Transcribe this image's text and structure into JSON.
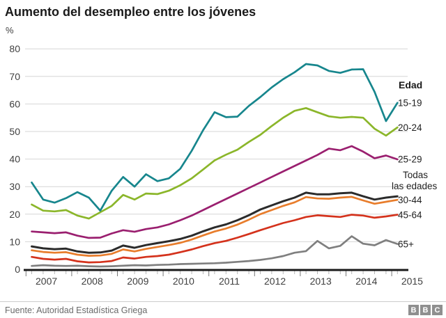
{
  "header": {
    "title": "Aumento del desempleo entre los jóvenes"
  },
  "footer": {
    "source": "Fuente: Autoridad Estadística Griega",
    "logo_letters": [
      "B",
      "B",
      "C"
    ]
  },
  "chart_data": {
    "type": "line",
    "title": "Aumento del desempleo entre los jóvenes",
    "ylabel": "%",
    "ylim": [
      0,
      80
    ],
    "ytick_step": 10,
    "grid": "horizontal",
    "x_unit": "quarterly",
    "x_start": "2007 Q1",
    "x_end": "2015 Q1",
    "x_years": [
      "2007",
      "2008",
      "2009",
      "2010",
      "2011",
      "2012",
      "2013",
      "2014",
      "2015"
    ],
    "legend_header": "Edad",
    "legend_position": "right-of-line-ends",
    "series": [
      {
        "name": "15-19",
        "label": "15-19",
        "color": "#17868D",
        "values": [
          31.5,
          25.3,
          24.2,
          25.8,
          28.0,
          26.0,
          21.3,
          28.5,
          33.5,
          30.0,
          34.5,
          32.0,
          33.0,
          36.5,
          43.0,
          50.5,
          57.0,
          55.2,
          55.4,
          59.3,
          62.5,
          66.0,
          69.0,
          71.5,
          74.5,
          74.0,
          72.0,
          71.3,
          72.5,
          72.6,
          64.4,
          53.8,
          60.4
        ]
      },
      {
        "name": "20-24",
        "label": "20-24",
        "color": "#8BB62A",
        "values": [
          23.5,
          21.3,
          21.0,
          21.5,
          19.5,
          18.4,
          20.7,
          23.0,
          27.0,
          25.3,
          27.5,
          27.3,
          28.5,
          30.5,
          33.0,
          36.2,
          39.5,
          41.6,
          43.4,
          46.2,
          48.8,
          52.0,
          55.0,
          57.5,
          58.5,
          57.0,
          55.5,
          55.0,
          55.3,
          55.0,
          51.0,
          48.5,
          51.5
        ]
      },
      {
        "name": "25-29",
        "label": "25-29",
        "color": "#9A1F6F",
        "values": [
          13.7,
          13.4,
          13.1,
          13.4,
          12.2,
          11.4,
          11.5,
          13.0,
          14.2,
          13.6,
          14.6,
          15.2,
          16.3,
          17.8,
          19.5,
          21.5,
          23.5,
          25.5,
          27.5,
          29.5,
          31.5,
          33.5,
          35.5,
          37.5,
          39.5,
          41.5,
          43.8,
          43.2,
          44.7,
          42.7,
          40.3,
          41.3,
          39.9
        ]
      },
      {
        "name": "Todas las edades",
        "label": null,
        "color": "#2B2B2B",
        "values": [
          8.3,
          7.6,
          7.3,
          7.5,
          6.5,
          6.0,
          6.1,
          6.8,
          8.6,
          7.8,
          8.8,
          9.5,
          10.2,
          11.0,
          12.2,
          13.8,
          15.2,
          16.3,
          17.8,
          19.6,
          21.7,
          23.2,
          24.7,
          26.0,
          27.8,
          27.2,
          27.2,
          27.6,
          27.8,
          26.5,
          25.3,
          26.0,
          26.5
        ]
      },
      {
        "name": "30-44",
        "label": "30-44",
        "color": "#E87D2C",
        "values": [
          6.9,
          6.3,
          6.0,
          6.2,
          5.3,
          4.9,
          5.0,
          5.6,
          7.2,
          6.5,
          7.4,
          8.1,
          8.8,
          9.6,
          10.8,
          12.3,
          13.7,
          14.8,
          16.2,
          18.0,
          20.0,
          21.5,
          23.0,
          24.3,
          26.2,
          25.7,
          25.6,
          26.0,
          26.3,
          25.0,
          23.8,
          24.5,
          25.2
        ]
      },
      {
        "name": "45-64",
        "label": "45-64",
        "color": "#D4321C",
        "values": [
          4.5,
          3.8,
          3.5,
          3.8,
          2.9,
          2.5,
          2.6,
          3.0,
          4.3,
          3.9,
          4.5,
          4.8,
          5.3,
          6.2,
          7.2,
          8.4,
          9.5,
          10.3,
          11.5,
          12.8,
          14.2,
          15.5,
          16.8,
          17.8,
          19.0,
          19.6,
          19.3,
          19.0,
          19.8,
          19.5,
          18.7,
          19.2,
          19.8
        ]
      },
      {
        "name": "65+",
        "label": "65+",
        "color": "#7F7F7F",
        "values": [
          1.2,
          1.5,
          1.3,
          1.2,
          1.3,
          1.1,
          1.0,
          1.1,
          1.3,
          1.5,
          1.4,
          1.6,
          1.7,
          1.9,
          2.0,
          2.1,
          2.2,
          2.4,
          2.7,
          3.0,
          3.4,
          4.0,
          4.8,
          6.0,
          6.6,
          10.3,
          7.6,
          8.5,
          12.0,
          9.3,
          8.7,
          10.6,
          9.2
        ]
      }
    ],
    "all_ages_label_lines": [
      "Todas",
      "las edades"
    ],
    "colors": {
      "gridline": "#D6D6D6",
      "axis": "#1A1A1A",
      "tick_minor": "#B5B5B5",
      "tick_major": "#777777",
      "axis_text": "#3F3F3F",
      "legend_text": "#1F1F1F"
    }
  }
}
